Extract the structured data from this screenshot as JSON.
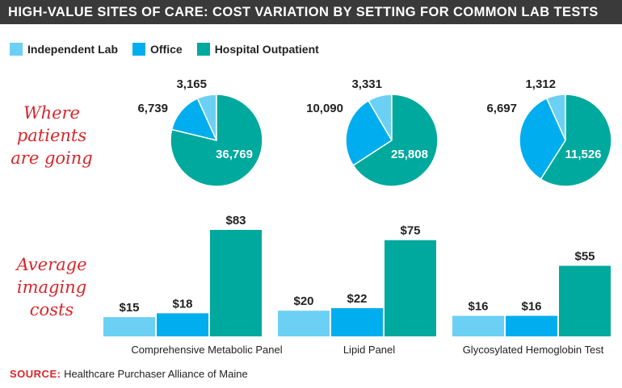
{
  "title": "HIGH-VALUE SITES OF CARE: COST VARIATION BY SETTING FOR COMMON LAB TESTS",
  "legend": [
    {
      "label": "Independent Lab",
      "color": "#6cd0f5"
    },
    {
      "label": "Office",
      "color": "#00aeef"
    },
    {
      "label": "Hospital Outpatient",
      "color": "#00a99d"
    }
  ],
  "row_labels": {
    "pies": [
      "Where",
      "patients",
      "are going"
    ],
    "bars": [
      "Average",
      "imaging",
      "costs"
    ]
  },
  "source": {
    "prefix": "SOURCE:",
    "text": " Healthcare Purchaser Alliance of Maine"
  },
  "chart_data": [
    {
      "type": "pie",
      "title": "Comprehensive Metabolic Panel",
      "series": [
        {
          "name": "Independent Lab",
          "value": 3165,
          "label": "3,165"
        },
        {
          "name": "Office",
          "value": 6739,
          "label": "6,739"
        },
        {
          "name": "Hospital Outpatient",
          "value": 36769,
          "label": "36,769"
        }
      ]
    },
    {
      "type": "pie",
      "title": "Lipid Panel",
      "series": [
        {
          "name": "Independent Lab",
          "value": 3331,
          "label": "3,331"
        },
        {
          "name": "Office",
          "value": 10090,
          "label": "10,090"
        },
        {
          "name": "Hospital Outpatient",
          "value": 25808,
          "label": "25,808"
        }
      ]
    },
    {
      "type": "pie",
      "title": "Glycosylated Hemoglobin Test",
      "series": [
        {
          "name": "Independent Lab",
          "value": 1312,
          "label": "1,312"
        },
        {
          "name": "Office",
          "value": 6697,
          "label": "6,697"
        },
        {
          "name": "Hospital Outpatient",
          "value": 11526,
          "label": "11,526"
        }
      ]
    },
    {
      "type": "bar",
      "categories": [
        "Comprehensive Metabolic Panel",
        "Lipid Panel",
        "Glycosylated Hemoglobin Test"
      ],
      "series": [
        {
          "name": "Independent Lab",
          "values": [
            15,
            20,
            16
          ],
          "labels": [
            "$15",
            "$20",
            "$16"
          ]
        },
        {
          "name": "Office",
          "values": [
            18,
            22,
            16
          ],
          "labels": [
            "$18",
            "$22",
            "$16"
          ]
        },
        {
          "name": "Hospital Outpatient",
          "values": [
            83,
            75,
            55
          ],
          "labels": [
            "$83",
            "$75",
            "$55"
          ]
        }
      ]
    }
  ]
}
